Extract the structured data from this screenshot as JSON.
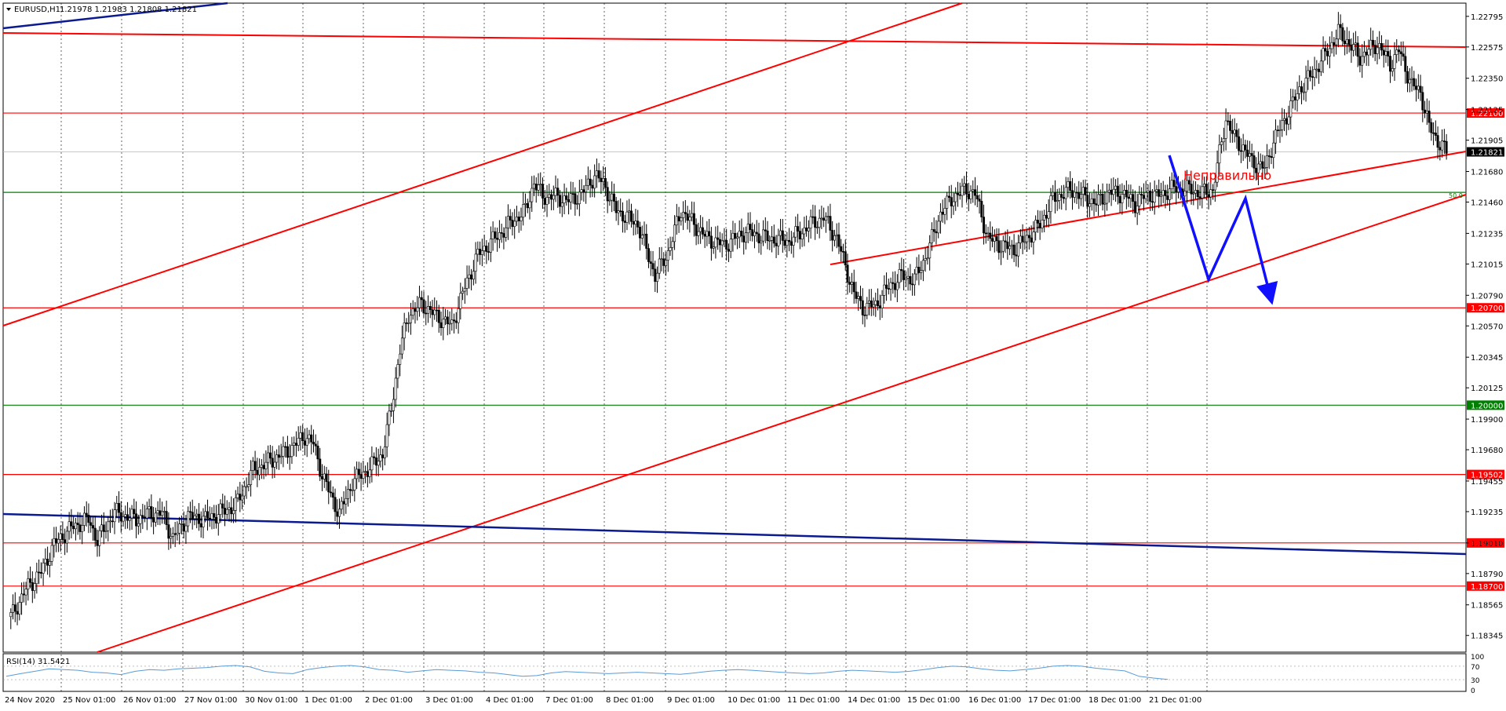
{
  "chart_data": {
    "type": "candlestick",
    "symbol_header": "EURUSD,H1",
    "ohlc_header": "1.21978 1.21983 1.21808 1.21821",
    "annotation_text": "Неправильно",
    "fib_label": "50.0",
    "y_range": [
      1.18225,
      1.2289
    ],
    "y_ticks": [
      "1.22795",
      "1.22575",
      "1.22350",
      "1.22125",
      "1.21905",
      "1.21680",
      "1.21460",
      "1.21235",
      "1.21015",
      "1.20790",
      "1.20570",
      "1.20345",
      "1.20125",
      "1.19900",
      "1.19680",
      "1.19455",
      "1.19235",
      "1.19010",
      "1.18790",
      "1.18565",
      "1.18345"
    ],
    "current_price": "1.21821",
    "x_labels": [
      "24 Nov 2020",
      "25 Nov 01:00",
      "26 Nov 01:00",
      "27 Nov 01:00",
      "30 Nov 01:00",
      "1 Dec 01:00",
      "2 Dec 01:00",
      "3 Dec 01:00",
      "4 Dec 01:00",
      "7 Dec 01:00",
      "8 Dec 01:00",
      "9 Dec 01:00",
      "10 Dec 01:00",
      "11 Dec 01:00",
      "14 Dec 01:00",
      "15 Dec 01:00",
      "16 Dec 01:00",
      "17 Dec 01:00",
      "18 Dec 01:00",
      "21 Dec 01:00"
    ],
    "horizontal_levels": [
      {
        "label": "1.22100",
        "value": 1.221,
        "color": "#ff0000"
      },
      {
        "label": "1.20700",
        "value": 1.207,
        "color": "#ff0000"
      },
      {
        "label": "1.20000",
        "value": 1.2,
        "color": "#008000"
      },
      {
        "label": "1.19502",
        "value": 1.19502,
        "color": "#ff0000"
      },
      {
        "label": "1.19010",
        "value": 1.1901,
        "color": "#ff0000"
      },
      {
        "label": "1.18700",
        "value": 1.187,
        "color": "#ff0000"
      }
    ],
    "green_level_unlabeled": 1.2153,
    "close_path": [
      [
        0,
        1.1848
      ],
      [
        8,
        1.187
      ],
      [
        14,
        1.188
      ],
      [
        20,
        1.19
      ],
      [
        28,
        1.1912
      ],
      [
        36,
        1.1918
      ],
      [
        40,
        1.1903
      ],
      [
        48,
        1.1923
      ],
      [
        58,
        1.1918
      ],
      [
        64,
        1.1922
      ],
      [
        70,
        1.1922
      ],
      [
        75,
        1.1904
      ],
      [
        82,
        1.192
      ],
      [
        90,
        1.1918
      ],
      [
        96,
        1.1922
      ],
      [
        104,
        1.1928
      ],
      [
        112,
        1.1953
      ],
      [
        120,
        1.196
      ],
      [
        128,
        1.1967
      ],
      [
        136,
        1.1978
      ],
      [
        140,
        1.1972
      ],
      [
        144,
        1.195
      ],
      [
        148,
        1.1935
      ],
      [
        152,
        1.1922
      ],
      [
        158,
        1.1945
      ],
      [
        166,
        1.1955
      ],
      [
        172,
        1.1965
      ],
      [
        176,
        1.1998
      ],
      [
        180,
        1.204
      ],
      [
        184,
        1.2065
      ],
      [
        190,
        1.2073
      ],
      [
        196,
        1.2065
      ],
      [
        204,
        1.2057
      ],
      [
        210,
        1.2085
      ],
      [
        216,
        1.2108
      ],
      [
        224,
        1.212
      ],
      [
        232,
        1.2132
      ],
      [
        238,
        1.214
      ],
      [
        242,
        1.216
      ],
      [
        246,
        1.215
      ],
      [
        252,
        1.215
      ],
      [
        258,
        1.2147
      ],
      [
        264,
        1.2152
      ],
      [
        270,
        1.2165
      ],
      [
        274,
        1.216
      ],
      [
        280,
        1.214
      ],
      [
        290,
        1.213
      ],
      [
        298,
        1.2093
      ],
      [
        304,
        1.211
      ],
      [
        310,
        1.214
      ],
      [
        316,
        1.213
      ],
      [
        322,
        1.212
      ],
      [
        330,
        1.2115
      ],
      [
        340,
        1.2125
      ],
      [
        350,
        1.212
      ],
      [
        360,
        1.2118
      ],
      [
        370,
        1.213
      ],
      [
        376,
        1.2135
      ],
      [
        382,
        1.212
      ],
      [
        390,
        1.208
      ],
      [
        394,
        1.207
      ],
      [
        400,
        1.2072
      ],
      [
        406,
        1.2085
      ],
      [
        412,
        1.2093
      ],
      [
        418,
        1.209
      ],
      [
        424,
        1.211
      ],
      [
        430,
        1.2138
      ],
      [
        436,
        1.215
      ],
      [
        442,
        1.2155
      ],
      [
        446,
        1.2152
      ],
      [
        452,
        1.212
      ],
      [
        458,
        1.2115
      ],
      [
        464,
        1.2112
      ],
      [
        470,
        1.212
      ],
      [
        476,
        1.213
      ],
      [
        482,
        1.2148
      ],
      [
        490,
        1.2155
      ],
      [
        496,
        1.215
      ],
      [
        502,
        1.2145
      ],
      [
        508,
        1.2153
      ],
      [
        514,
        1.2152
      ],
      [
        520,
        1.2145
      ],
      [
        526,
        1.2152
      ],
      [
        530,
        1.215
      ],
      [
        538,
        1.2156
      ],
      [
        546,
        1.2155
      ],
      [
        550,
        1.2152
      ],
      [
        556,
        1.2155
      ],
      [
        562,
        1.2206
      ],
      [
        566,
        1.2192
      ],
      [
        570,
        1.2185
      ],
      [
        574,
        1.2175
      ],
      [
        580,
        1.217
      ],
      [
        584,
        1.219
      ],
      [
        590,
        1.2208
      ],
      [
        596,
        1.2227
      ],
      [
        602,
        1.2238
      ],
      [
        608,
        1.2252
      ],
      [
        614,
        1.2268
      ],
      [
        618,
        1.2262
      ],
      [
        624,
        1.225
      ],
      [
        632,
        1.226
      ],
      [
        638,
        1.2245
      ],
      [
        642,
        1.2255
      ],
      [
        648,
        1.223
      ],
      [
        652,
        1.2225
      ],
      [
        656,
        1.22
      ],
      [
        660,
        1.219
      ],
      [
        664,
        1.2182
      ]
    ],
    "rsi": {
      "label": "RSI(14) 31.5421",
      "ticks": [
        "100",
        "70",
        "30",
        "0"
      ],
      "levels": [
        70,
        30
      ],
      "values": [
        40,
        48,
        55,
        62,
        60,
        58,
        52,
        50,
        45,
        55,
        60,
        58,
        62,
        64,
        66,
        70,
        72,
        68,
        55,
        50,
        48,
        60,
        66,
        70,
        72,
        68,
        60,
        58,
        52,
        56,
        60,
        58,
        56,
        52,
        50,
        45,
        40,
        42,
        50,
        54,
        52,
        50,
        48,
        50,
        52,
        50,
        48,
        46,
        50,
        55,
        58,
        60,
        58,
        55,
        52,
        50,
        48,
        50,
        55,
        58,
        56,
        54,
        52,
        55,
        60,
        66,
        70,
        68,
        62,
        58,
        56,
        60,
        64,
        70,
        72,
        70,
        64,
        60,
        56,
        40,
        35,
        31
      ]
    }
  }
}
